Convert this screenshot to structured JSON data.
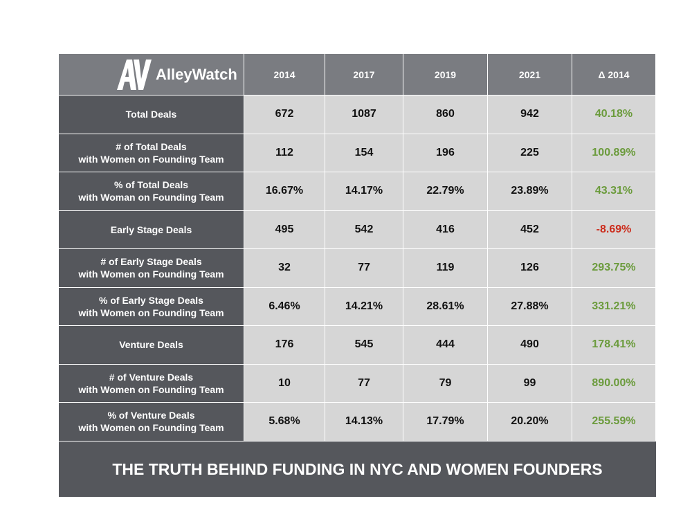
{
  "header": {
    "logo": "AlleyWatch",
    "columns": [
      "2014",
      "2017",
      "2019",
      "2021",
      "Δ 2014"
    ]
  },
  "table": {
    "rows": [
      {
        "label": [
          "Total Deals"
        ],
        "values": [
          "672",
          "1087",
          "860",
          "942"
        ],
        "change": "40.18%"
      },
      {
        "label": [
          "# of Total Deals",
          "with Women on Founding Team"
        ],
        "values": [
          "112",
          "154",
          "196",
          "225"
        ],
        "change": "100.89%"
      },
      {
        "label": [
          "% of Total Deals",
          "with Woman on Founding Team"
        ],
        "values": [
          "16.67%",
          "14.17%",
          "22.79%",
          "23.89%"
        ],
        "change": "43.31%"
      },
      {
        "label": [
          "Early Stage Deals"
        ],
        "values": [
          "495",
          "542",
          "416",
          "452"
        ],
        "change": "-8.69%"
      },
      {
        "label": [
          "# of Early Stage Deals",
          "with Women on Founding Team"
        ],
        "values": [
          "32",
          "77",
          "119",
          "126"
        ],
        "change": "293.75%"
      },
      {
        "label": [
          "% of Early Stage Deals",
          "with Women on Founding Team"
        ],
        "values": [
          "6.46%",
          "14.21%",
          "28.61%",
          "27.88%"
        ],
        "change": "331.21%"
      },
      {
        "label": [
          "Venture Deals"
        ],
        "values": [
          "176",
          "545",
          "444",
          "490"
        ],
        "change": "178.41%"
      },
      {
        "label": [
          "# of Venture Deals",
          "with Women on Founding Team"
        ],
        "values": [
          "10",
          "77",
          "79",
          "99"
        ],
        "change": "890.00%"
      },
      {
        "label": [
          "% of Venture Deals",
          "with Women on Founding Team"
        ],
        "values": [
          "5.68%",
          "14.13%",
          "17.79%",
          "20.20%"
        ],
        "change": "255.59%"
      }
    ]
  },
  "footer": {
    "title": "THE TRUTH BEHIND FUNDING IN NYC AND WOMEN FOUNDERS"
  }
}
